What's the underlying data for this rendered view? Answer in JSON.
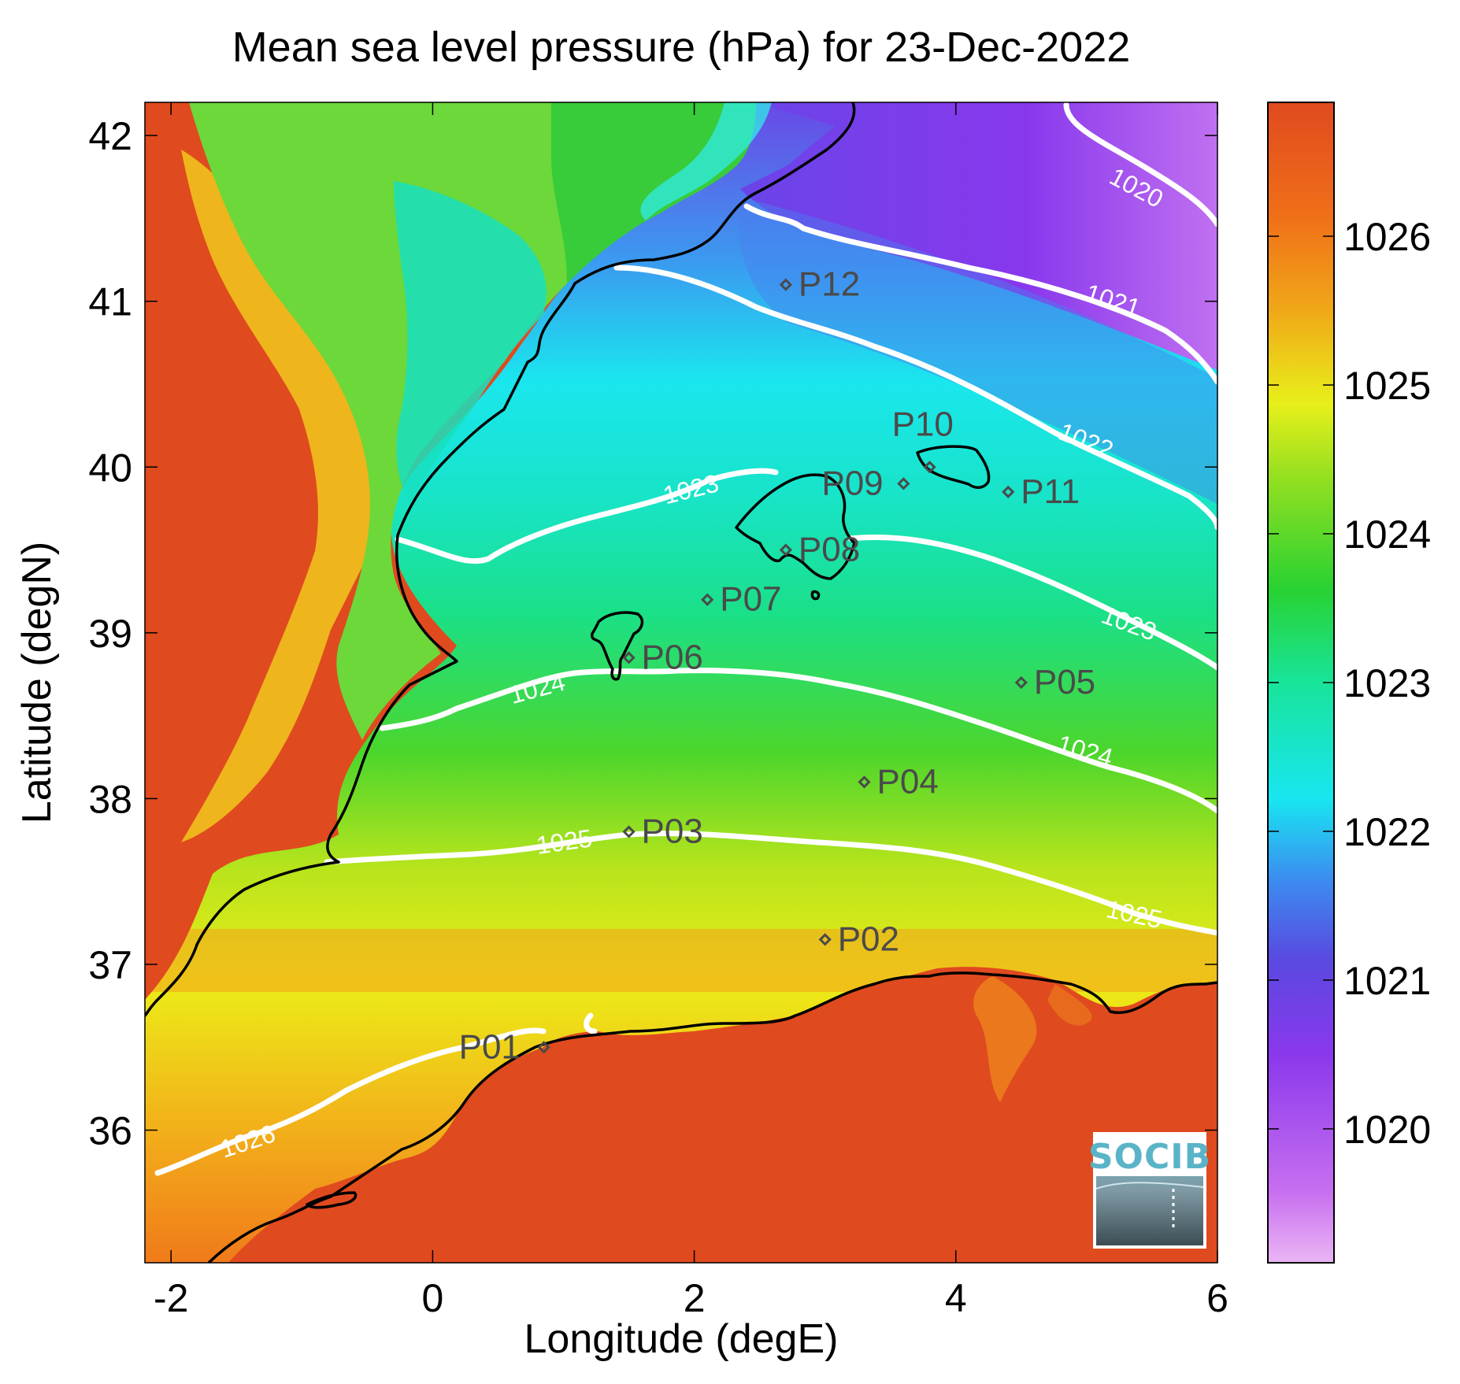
{
  "title": "Mean sea level pressure (hPa) for 23-Dec-2022",
  "xlabel": "Longitude (degE)",
  "ylabel": "Latitude (degN)",
  "x_ticks": [
    "-2",
    "0",
    "2",
    "4",
    "6"
  ],
  "y_ticks": [
    "42",
    "41",
    "40",
    "39",
    "38",
    "37",
    "36"
  ],
  "colorbar_ticks": [
    "1026",
    "1025",
    "1024",
    "1023",
    "1022",
    "1021",
    "1020"
  ],
  "colors": {
    "high": "#e04a1f",
    "mid_yellow": "#e8f01a",
    "mid_green": "#28d232",
    "cyan": "#18e6f0",
    "blue": "#4060e0",
    "purple": "#8a38ec",
    "low": "#e2a4f2"
  },
  "logo": "SOCIB",
  "chart_data": {
    "type": "heatmap",
    "title": "Mean sea level pressure (hPa) for 23-Dec-2022",
    "xlabel": "Longitude (degE)",
    "ylabel": "Latitude (degN)",
    "xlim": [
      -2.2,
      6.0
    ],
    "ylim": [
      35.2,
      42.2
    ],
    "colorbar": {
      "label": "",
      "range": [
        1019.1,
        1026.9
      ],
      "ticks": [
        1020,
        1021,
        1022,
        1023,
        1024,
        1025,
        1026
      ]
    },
    "contours": [
      {
        "level": "1020",
        "label": "1020"
      },
      {
        "level": "1021",
        "label": "1021"
      },
      {
        "level": "1022",
        "label": "1022"
      },
      {
        "level": "1023",
        "label": "1023"
      },
      {
        "level": "1024",
        "label": "1024"
      },
      {
        "level": "1025",
        "label": "1025"
      },
      {
        "level": "1026",
        "label": "1026"
      }
    ],
    "points": [
      {
        "name": "P01",
        "lon": 0.85,
        "lat": 36.5
      },
      {
        "name": "P02",
        "lon": 3.0,
        "lat": 37.15
      },
      {
        "name": "P03",
        "lon": 1.5,
        "lat": 37.8
      },
      {
        "name": "P04",
        "lon": 3.3,
        "lat": 38.1
      },
      {
        "name": "P05",
        "lon": 4.5,
        "lat": 38.7
      },
      {
        "name": "P06",
        "lon": 1.5,
        "lat": 38.85
      },
      {
        "name": "P07",
        "lon": 2.1,
        "lat": 39.2
      },
      {
        "name": "P08",
        "lon": 2.7,
        "lat": 39.5
      },
      {
        "name": "P09",
        "lon": 3.6,
        "lat": 39.9
      },
      {
        "name": "P10",
        "lon": 3.8,
        "lat": 40.0
      },
      {
        "name": "P11",
        "lon": 4.4,
        "lat": 39.85
      },
      {
        "name": "P12",
        "lon": 2.7,
        "lat": 41.1
      }
    ]
  }
}
